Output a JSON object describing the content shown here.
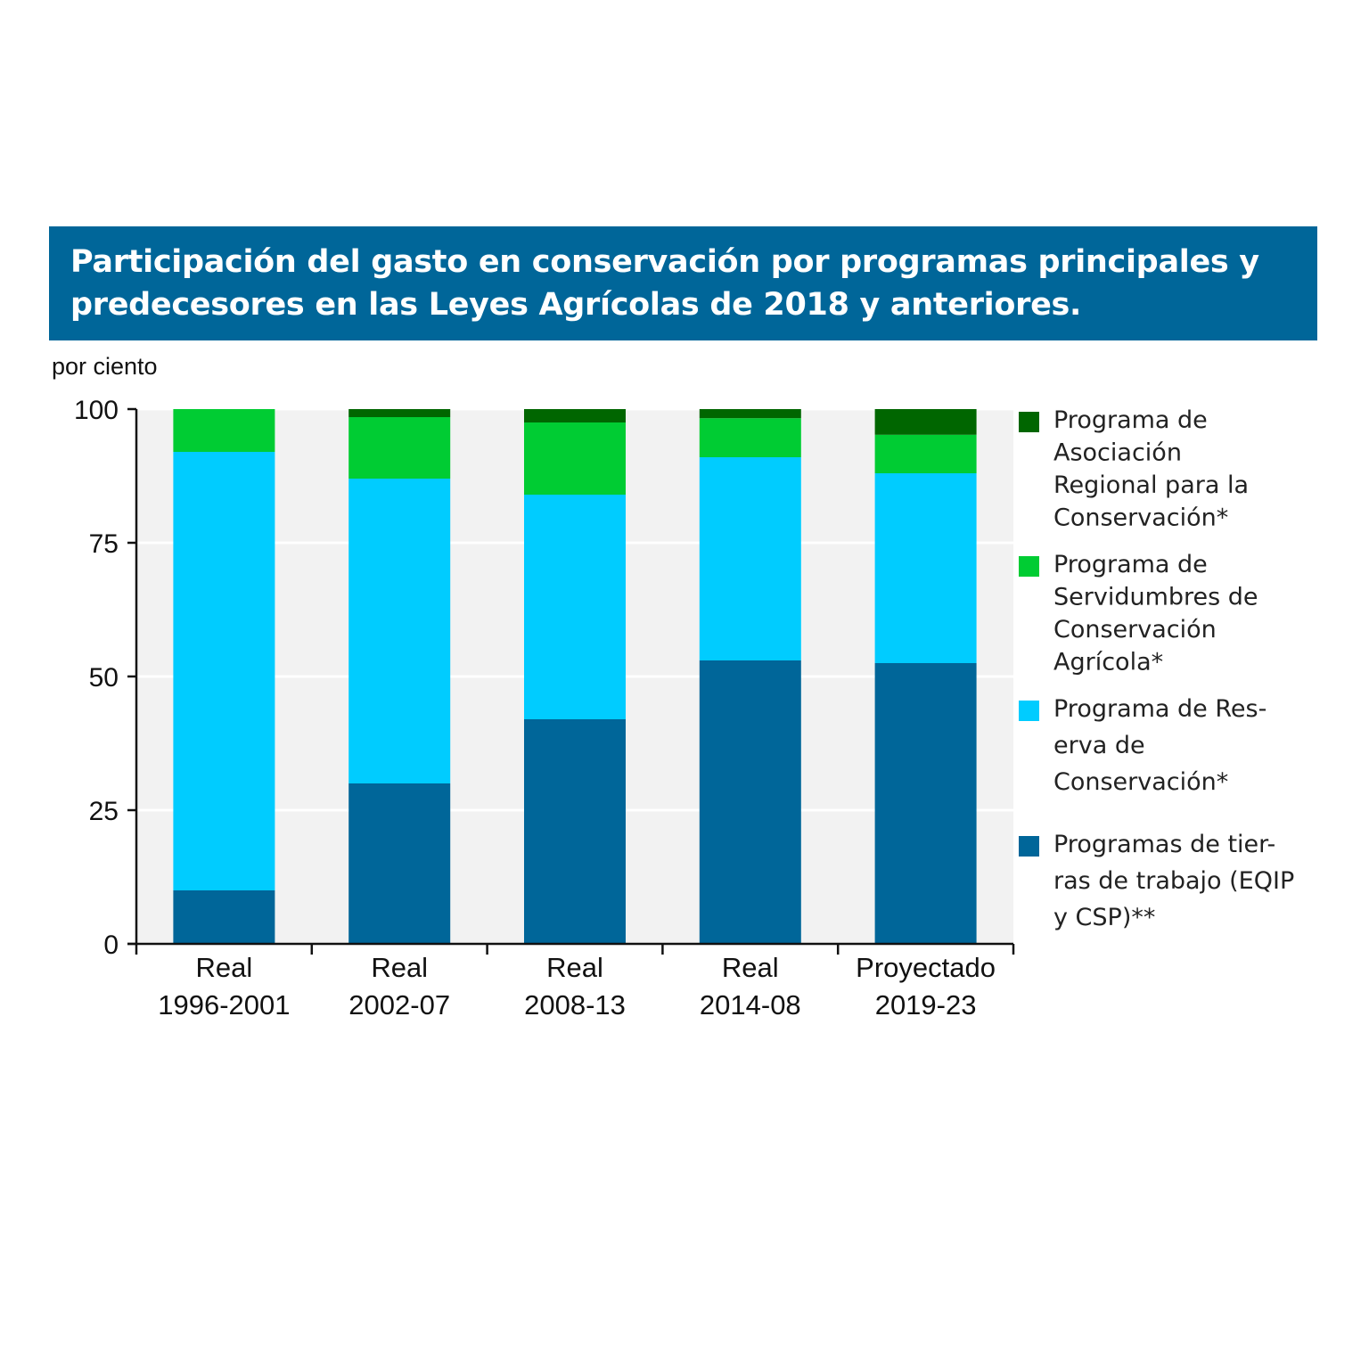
{
  "title": "Participación del gasto en conservación por programas principales y predecesores en las Leyes Agrícolas de 2018 y anteriores.",
  "colors": {
    "banner": "#006699",
    "plot_background": "#f2f2f2"
  },
  "chart_data": {
    "type": "bar",
    "stacked": true,
    "ylabel": "por ciento",
    "ylim": [
      0,
      100
    ],
    "yticks": [
      0,
      25,
      50,
      75,
      100
    ],
    "categories": [
      [
        "Real",
        "1996-2001"
      ],
      [
        "Real",
        "2002-07"
      ],
      [
        "Real",
        "2008-13"
      ],
      [
        "Real",
        "2014-08"
      ],
      [
        "Proyectado",
        "2019-23"
      ]
    ],
    "series": [
      {
        "name": "Programas de tierras de trabajo (EQIP y CSP)**",
        "legend_lines": [
          "Programas de tier-",
          "ras de trabajo (EQIP",
          "y CSP)**"
        ],
        "color": "#006699",
        "values": [
          10,
          30,
          42,
          53,
          52.5
        ]
      },
      {
        "name": "Programa de Reserva de Conservación*",
        "legend_lines": [
          "Programa de Res-",
          "erva de",
          "Conservación*"
        ],
        "color": "#00ccff",
        "values": [
          82,
          57,
          42,
          38,
          35.5
        ]
      },
      {
        "name": "Programa de Servidumbres de Conservación Agrícola*",
        "legend_lines": [
          "Programa de",
          "Servidumbres de",
          "Conservación",
          "Agrícola*"
        ],
        "color": "#00cc33",
        "values": [
          8,
          11.5,
          13.5,
          7.3,
          7.2
        ]
      },
      {
        "name": "Programa de Asociación Regional para la Conservación*",
        "legend_lines": [
          "Programa de",
          "Asociación",
          "Regional para la",
          "Conservación*"
        ],
        "color": "#006600",
        "values": [
          0,
          1.5,
          2.5,
          1.7,
          4.8
        ]
      }
    ],
    "legend_order": [
      3,
      2,
      1,
      0
    ],
    "grid": true,
    "legend_position": "right"
  }
}
